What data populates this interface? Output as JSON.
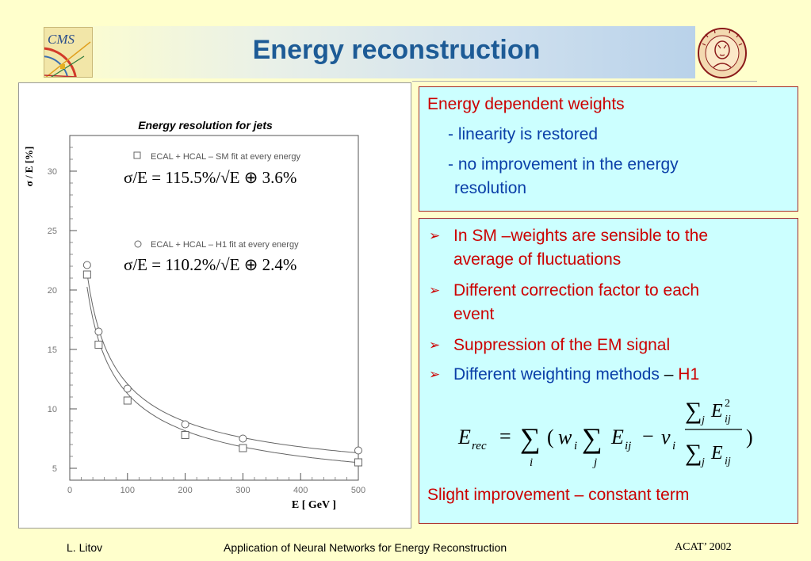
{
  "header": {
    "title": "Energy reconstruction",
    "cms_logo_text": "CMS"
  },
  "plot": {
    "title": "Energy resolution for jets",
    "legend": {
      "sm_label": "ECAL + HCAL – SM  fit at every energy",
      "sm_formula": "σ/E  =  115.5%/√E  ⊕  3.6%",
      "h1_label": "ECAL + HCAL – H1  fit at every energy",
      "h1_formula": "σ/E  =  110.2%/√E  ⊕  2.4%"
    }
  },
  "chart_data": {
    "type": "scatter",
    "title": "Energy resolution for jets",
    "xlabel": "E    [ GeV ]",
    "ylabel": "σ / E   [%]",
    "xlim": [
      0,
      500
    ],
    "ylim": [
      4,
      33
    ],
    "x_ticks": [
      "0",
      "100",
      "200",
      "300",
      "400",
      "500"
    ],
    "y_ticks": [
      "5",
      "10",
      "15",
      "20",
      "25",
      "30"
    ],
    "series": [
      {
        "name": "ECAL + HCAL – SM  fit at every energy",
        "marker": "square",
        "x": [
          30,
          50,
          100,
          200,
          300,
          500
        ],
        "y": [
          21.3,
          15.4,
          10.7,
          7.8,
          6.7,
          5.5
        ],
        "fit": {
          "a": 115.5,
          "c": 3.6
        }
      },
      {
        "name": "ECAL + HCAL – H1  fit at every energy",
        "marker": "circle",
        "x": [
          30,
          50,
          100,
          200,
          300,
          500
        ],
        "y": [
          22.1,
          16.5,
          11.7,
          8.7,
          7.5,
          6.5
        ],
        "fit": {
          "a": 110.2,
          "c": 2.4
        }
      }
    ]
  },
  "box1": {
    "heading": "Energy dependent weights",
    "item1": "- linearity is restored",
    "item2_line1": "- no improvement in the energy",
    "item2_line2": "resolution"
  },
  "box2": {
    "bullet_glyph": "➢",
    "b1_line1": "In SM –weights are sensible to the",
    "b1_line2": "average of fluctuations",
    "b2_line1": "Different correction factor to each",
    "b2_line2": "event",
    "b3": "Suppression of the EM signal",
    "b4_part1": "Different weighting methods",
    "b4_dash": " – ",
    "b4_part2": "H1",
    "conclusion": "Slight improvement –  constant term"
  },
  "formula": {
    "lhs": "E",
    "lhs_sub": "rec",
    "eq": "=",
    "sum": "∑",
    "sub_i": "i",
    "sub_j": "j",
    "sub_ij": "ij",
    "open": "(",
    "w": "w",
    "minus": "−",
    "v": "v",
    "close": ")",
    "num_E": "E",
    "sup2": "2",
    "den_E": "E"
  },
  "footer": {
    "author": "L. Litov",
    "talk": "Application of Neural Networks for Energy Reconstruction",
    "conference": "ACAT’ 2002"
  },
  "colors": {
    "title": "#1d5b96",
    "red_text": "#cc0000",
    "blue_text": "#0a3fa8",
    "box_fill": "#ccffff",
    "box_border": "#a52a2a",
    "page_bg": "#ffffcc"
  }
}
